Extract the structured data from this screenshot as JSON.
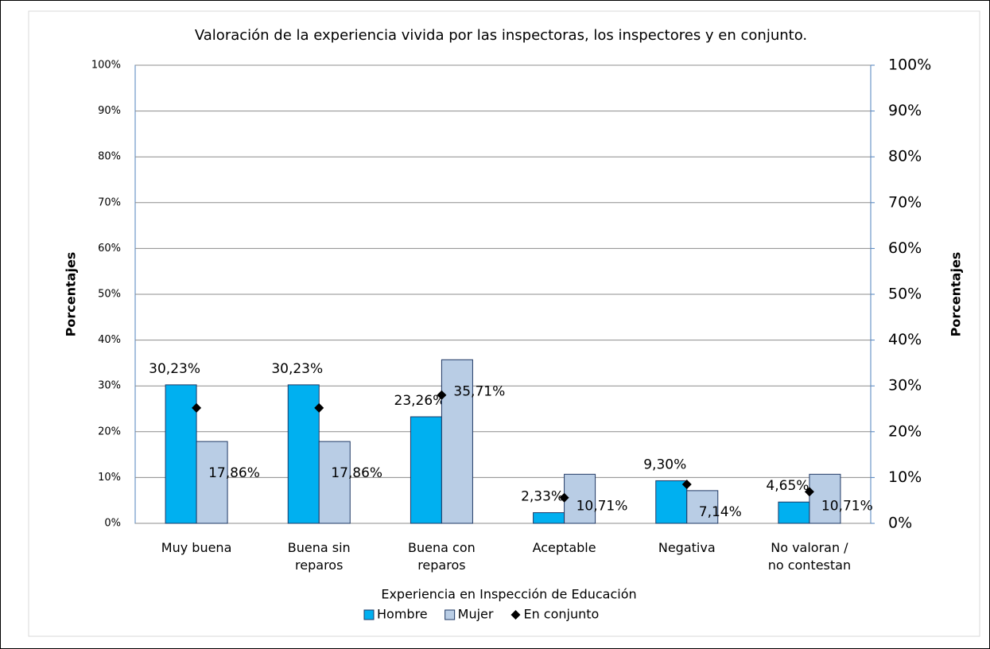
{
  "chart_data": {
    "type": "bar",
    "title": "Valoración de la experiencia vivida por las inspectoras, los inspectores y en conjunto.",
    "x_label": "Experiencia en Inspección de Educación",
    "y_label": "Porcentajes",
    "y2_label": "Porcentajes",
    "categories": [
      "Muy buena",
      "Buena sin reparos",
      "Buena con reparos",
      "Aceptable",
      "Negativa",
      "No valoran / no contestan"
    ],
    "series": [
      {
        "name": "Hombre",
        "type": "bar",
        "color": "#00b0f0",
        "values": [
          30.23,
          30.23,
          23.26,
          2.33,
          9.3,
          4.65
        ],
        "value_labels": [
          "30,23%",
          "30,23%",
          "23,26%",
          "2,33%",
          "9,30%",
          "4,65%"
        ]
      },
      {
        "name": "Mujer",
        "type": "bar",
        "color": "#b9cde5",
        "values": [
          17.86,
          17.86,
          35.71,
          10.71,
          7.14,
          10.71
        ],
        "value_labels": [
          "17,86%",
          "17,86%",
          "35,71%",
          "10,71%",
          "7,14%",
          "10,71%"
        ]
      },
      {
        "name": "En conjunto",
        "type": "scatter",
        "color": "#000000",
        "values": [
          25.2,
          25.2,
          28.0,
          5.6,
          8.5,
          6.9
        ]
      }
    ],
    "ylim": [
      0,
      100
    ],
    "yticks": [
      {
        "value": 0,
        "label": "0%"
      },
      {
        "value": 10,
        "label": "10%"
      },
      {
        "value": 20,
        "label": "20%"
      },
      {
        "value": 30,
        "label": "30%"
      },
      {
        "value": 40,
        "label": "40%"
      },
      {
        "value": 50,
        "label": "50%"
      },
      {
        "value": 60,
        "label": "60%"
      },
      {
        "value": 70,
        "label": "70%"
      },
      {
        "value": 80,
        "label": "80%"
      },
      {
        "value": 90,
        "label": "90%"
      },
      {
        "value": 100,
        "label": "100%"
      }
    ],
    "y2lim": [
      0,
      100
    ],
    "y2ticks": [
      {
        "value": 0,
        "label": "0%"
      },
      {
        "value": 10,
        "label": "10%"
      },
      {
        "value": 20,
        "label": "20%"
      },
      {
        "value": 30,
        "label": "30%"
      },
      {
        "value": 40,
        "label": "40%"
      },
      {
        "value": 50,
        "label": "50%"
      },
      {
        "value": 60,
        "label": "60%"
      },
      {
        "value": 70,
        "label": "70%"
      },
      {
        "value": 80,
        "label": "80%"
      },
      {
        "value": 90,
        "label": "90%"
      },
      {
        "value": 100,
        "label": "100%"
      }
    ],
    "grid": true,
    "legend": "bottom"
  }
}
